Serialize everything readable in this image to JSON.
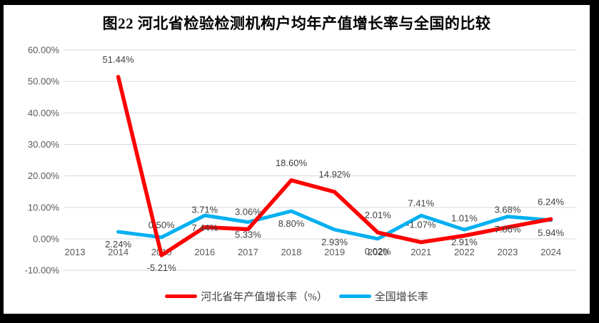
{
  "title": "图22 河北省检验检测机构户均年产值增长率与全国的比较",
  "chart_data": {
    "type": "line",
    "categories": [
      "2013",
      "2014",
      "2015",
      "2016",
      "2017",
      "2018",
      "2019",
      "2020",
      "2021",
      "2022",
      "2023",
      "2024"
    ],
    "series": [
      {
        "name": "河北省年产值增长率（%）",
        "color": "#FF0000",
        "values": [
          null,
          51.44,
          -5.21,
          3.71,
          3.06,
          18.6,
          14.92,
          2.01,
          -1.07,
          1.01,
          3.68,
          6.24
        ],
        "label_positions": [
          null,
          "above",
          "below",
          "above",
          "above",
          "above",
          "above",
          "above",
          "above",
          "above",
          "above",
          "above"
        ]
      },
      {
        "name": "全国增长率",
        "color": "#00B0F0",
        "values": [
          null,
          2.24,
          0.5,
          7.44,
          5.33,
          8.8,
          2.93,
          0.02,
          7.41,
          2.91,
          7.06,
          5.94
        ],
        "label_positions": [
          null,
          "below",
          "above",
          "below",
          "below",
          "below",
          "below",
          "below",
          "above",
          "below",
          "below",
          "below"
        ]
      }
    ],
    "xlabel": "",
    "ylabel": "",
    "y_axis": {
      "min": -10,
      "max": 60,
      "step": 10
    },
    "y_tick_labels": [
      "60.00%",
      "50.00%",
      "40.00%",
      "30.00%",
      "20.00%",
      "10.00%",
      "0.00%",
      "-10.00%"
    ],
    "data_label_format": "0.00%",
    "grid": true,
    "legend_position": "bottom",
    "colors": {
      "gridline": "#D9D9D9",
      "axis_text": "#595959",
      "data_label": "#404040",
      "title_text": "#000000",
      "plot_background": "#FFFFFF",
      "frame": "#000000"
    }
  }
}
